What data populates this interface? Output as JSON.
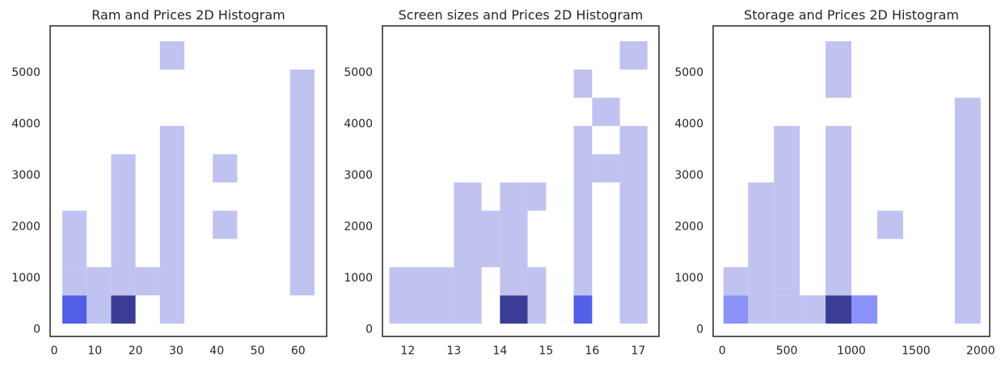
{
  "chart_data": [
    {
      "type": "heatmap",
      "title": "Ram and Prices 2D Histogram",
      "xlabel": "",
      "ylabel": "",
      "grid": false,
      "legend": "none",
      "xlim": [
        -1,
        67
      ],
      "ylim": [
        -150,
        5900
      ],
      "x_ticks": [
        0,
        10,
        20,
        30,
        40,
        50,
        60
      ],
      "y_ticks": [
        0,
        1000,
        2000,
        3000,
        4000,
        5000
      ],
      "cells": [
        {
          "x0": 2,
          "x1": 8,
          "y0": 100,
          "y1": 650,
          "count": 4
        },
        {
          "x0": 2,
          "x1": 8,
          "y0": 650,
          "y1": 1200,
          "count": 1
        },
        {
          "x0": 2,
          "x1": 8,
          "y0": 1200,
          "y1": 2300,
          "count": 1
        },
        {
          "x0": 8,
          "x1": 14,
          "y0": 100,
          "y1": 1200,
          "count": 1
        },
        {
          "x0": 14,
          "x1": 20,
          "y0": 100,
          "y1": 650,
          "count": 6
        },
        {
          "x0": 14,
          "x1": 20,
          "y0": 650,
          "y1": 3400,
          "count": 1
        },
        {
          "x0": 20,
          "x1": 26,
          "y0": 650,
          "y1": 1200,
          "count": 1
        },
        {
          "x0": 26,
          "x1": 32,
          "y0": 100,
          "y1": 3950,
          "count": 1
        },
        {
          "x0": 26,
          "x1": 32,
          "y0": 5050,
          "y1": 5600,
          "count": 1
        },
        {
          "x0": 39,
          "x1": 45,
          "y0": 1750,
          "y1": 2300,
          "count": 1
        },
        {
          "x0": 39,
          "x1": 45,
          "y0": 2850,
          "y1": 3400,
          "count": 1
        },
        {
          "x0": 58,
          "x1": 64,
          "y0": 650,
          "y1": 5050,
          "count": 1
        }
      ]
    },
    {
      "type": "heatmap",
      "title": "Screen sizes and Prices 2D Histogram",
      "xlabel": "",
      "ylabel": "",
      "grid": false,
      "legend": "none",
      "xlim": [
        11.45,
        17.45
      ],
      "ylim": [
        -150,
        5900
      ],
      "x_ticks": [
        12,
        13,
        14,
        15,
        16,
        17
      ],
      "y_ticks": [
        0,
        1000,
        2000,
        3000,
        4000,
        5000
      ],
      "cells": [
        {
          "x0": 11.6,
          "x1": 13.0,
          "y0": 100,
          "y1": 1200,
          "count": 1
        },
        {
          "x0": 13.0,
          "x1": 13.6,
          "y0": 100,
          "y1": 2850,
          "count": 1
        },
        {
          "x0": 13.6,
          "x1": 14.0,
          "y0": 1200,
          "y1": 2300,
          "count": 1
        },
        {
          "x0": 14.0,
          "x1": 14.6,
          "y0": 100,
          "y1": 650,
          "count": 6
        },
        {
          "x0": 14.0,
          "x1": 14.6,
          "y0": 650,
          "y1": 2850,
          "count": 1
        },
        {
          "x0": 14.6,
          "x1": 15.0,
          "y0": 100,
          "y1": 1200,
          "count": 1
        },
        {
          "x0": 14.6,
          "x1": 15.0,
          "y0": 2300,
          "y1": 2850,
          "count": 1
        },
        {
          "x0": 15.6,
          "x1": 16.0,
          "y0": 100,
          "y1": 650,
          "count": 4
        },
        {
          "x0": 15.6,
          "x1": 16.0,
          "y0": 650,
          "y1": 3950,
          "count": 1
        },
        {
          "x0": 15.6,
          "x1": 16.0,
          "y0": 4500,
          "y1": 5050,
          "count": 1
        },
        {
          "x0": 16.0,
          "x1": 16.6,
          "y0": 2850,
          "y1": 3400,
          "count": 1
        },
        {
          "x0": 16.0,
          "x1": 16.6,
          "y0": 3950,
          "y1": 4500,
          "count": 1
        },
        {
          "x0": 16.6,
          "x1": 17.2,
          "y0": 100,
          "y1": 3950,
          "count": 1
        },
        {
          "x0": 16.6,
          "x1": 17.2,
          "y0": 5050,
          "y1": 5600,
          "count": 1
        }
      ]
    },
    {
      "type": "heatmap",
      "title": "Storage and Prices 2D Histogram",
      "xlabel": "",
      "ylabel": "",
      "grid": false,
      "legend": "none",
      "xlim": [
        -70,
        2070
      ],
      "ylim": [
        -150,
        5900
      ],
      "x_ticks": [
        0,
        500,
        1000,
        1500,
        2000
      ],
      "y_ticks": [
        0,
        1000,
        2000,
        3000,
        4000,
        5000
      ],
      "cells": [
        {
          "x0": 10,
          "x1": 200,
          "y0": 100,
          "y1": 650,
          "count": 3
        },
        {
          "x0": 10,
          "x1": 200,
          "y0": 650,
          "y1": 1200,
          "count": 1
        },
        {
          "x0": 200,
          "x1": 400,
          "y0": 100,
          "y1": 2850,
          "count": 1
        },
        {
          "x0": 400,
          "x1": 600,
          "y0": 100,
          "y1": 650,
          "count": 1
        },
        {
          "x0": 400,
          "x1": 600,
          "y0": 650,
          "y1": 3950,
          "count": 1
        },
        {
          "x0": 600,
          "x1": 800,
          "y0": 100,
          "y1": 650,
          "count": 1
        },
        {
          "x0": 800,
          "x1": 1000,
          "y0": 100,
          "y1": 650,
          "count": 6
        },
        {
          "x0": 800,
          "x1": 1000,
          "y0": 650,
          "y1": 3950,
          "count": 1
        },
        {
          "x0": 800,
          "x1": 1000,
          "y0": 4500,
          "y1": 5600,
          "count": 1
        },
        {
          "x0": 1000,
          "x1": 1200,
          "y0": 100,
          "y1": 650,
          "count": 3
        },
        {
          "x0": 1200,
          "x1": 1400,
          "y0": 1750,
          "y1": 2300,
          "count": 1
        },
        {
          "x0": 1800,
          "x1": 2000,
          "y0": 100,
          "y1": 4500,
          "count": 1
        }
      ]
    }
  ],
  "colors": {
    "low": "#c0c3f0",
    "mid": "#8a91f7",
    "high": "#525fe6",
    "max": "#3c3c96",
    "axis": "#262626"
  }
}
